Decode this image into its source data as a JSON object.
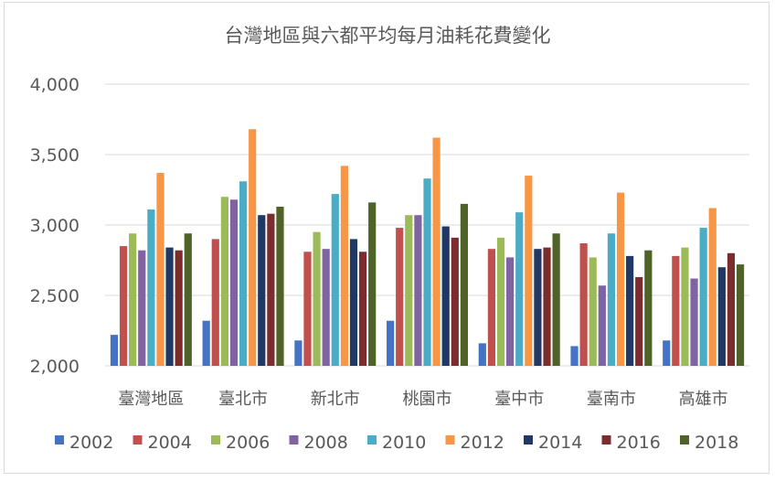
{
  "chart_data": {
    "type": "bar",
    "title": "台灣地區與六都平均每月油耗花費變化",
    "xlabel": "",
    "ylabel": "",
    "ylim": [
      2000,
      4000
    ],
    "yticks": [
      "2,000",
      "2,500",
      "3,000",
      "3,500",
      "4,000"
    ],
    "ytick_values": [
      2000,
      2500,
      3000,
      3500,
      4000
    ],
    "grid": true,
    "legend_position": "bottom",
    "categories": [
      "臺灣地區",
      "臺北市",
      "新北市",
      "桃園市",
      "臺中市",
      "臺南市",
      "高雄市"
    ],
    "series": [
      {
        "name": "2002",
        "color": "#4472c4",
        "values": [
          2220,
          2320,
          2180,
          2320,
          2160,
          2140,
          2180
        ]
      },
      {
        "name": "2004",
        "color": "#c0504d",
        "values": [
          2850,
          2900,
          2810,
          2980,
          2830,
          2870,
          2780
        ]
      },
      {
        "name": "2006",
        "color": "#9bbb59",
        "values": [
          2940,
          3200,
          2950,
          3070,
          2910,
          2770,
          2840
        ]
      },
      {
        "name": "2008",
        "color": "#8064a2",
        "values": [
          2820,
          3180,
          2830,
          3070,
          2770,
          2570,
          2620
        ]
      },
      {
        "name": "2010",
        "color": "#4bacc6",
        "values": [
          3110,
          3310,
          3220,
          3330,
          3090,
          2940,
          2980
        ]
      },
      {
        "name": "2012",
        "color": "#f79646",
        "values": [
          3370,
          3680,
          3420,
          3620,
          3350,
          3230,
          3120
        ]
      },
      {
        "name": "2014",
        "color": "#1f3864",
        "values": [
          2840,
          3070,
          2900,
          2990,
          2830,
          2780,
          2700
        ]
      },
      {
        "name": "2016",
        "color": "#7b2c2c",
        "values": [
          2820,
          3080,
          2810,
          2910,
          2840,
          2630,
          2800
        ]
      },
      {
        "name": "2018",
        "color": "#4f6228",
        "values": [
          2940,
          3130,
          3160,
          3150,
          2940,
          2820,
          2720
        ]
      }
    ]
  }
}
